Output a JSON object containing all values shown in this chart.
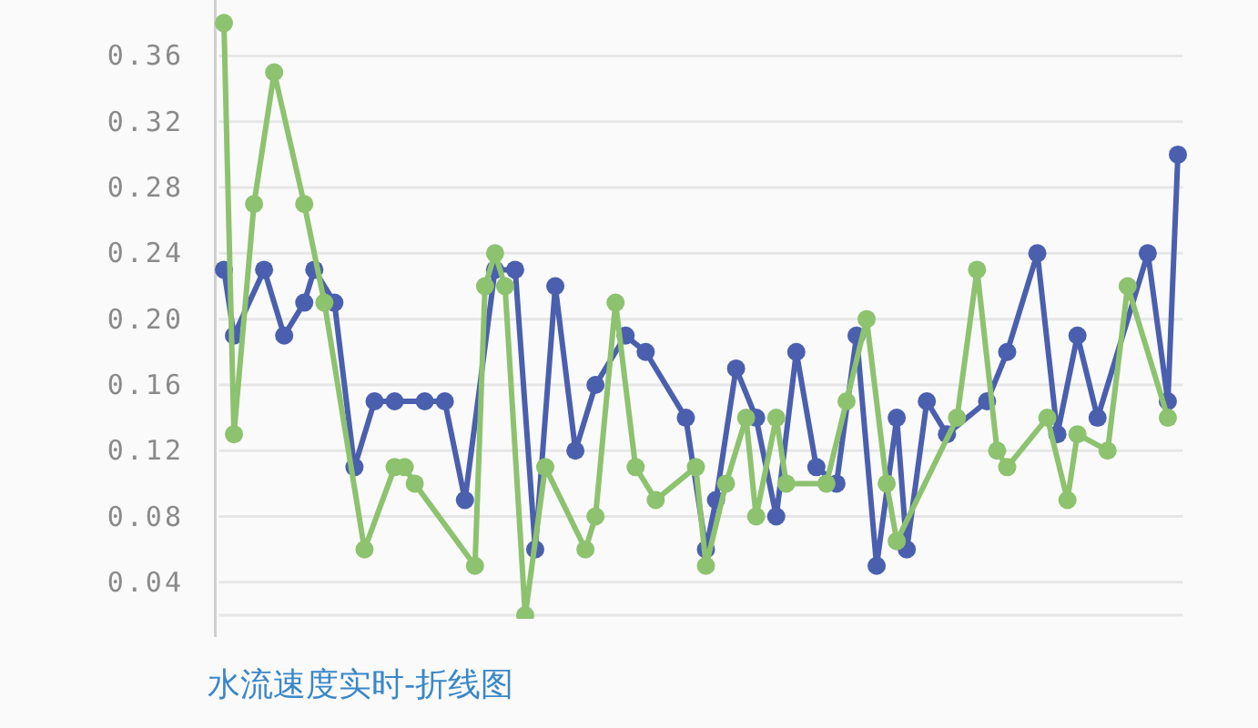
{
  "chart_data": {
    "type": "line",
    "title": "水流速度实时-折线图",
    "categories": [
      null,
      null,
      null,
      null,
      null,
      null,
      null,
      null,
      null,
      null,
      null,
      null,
      null,
      null,
      null,
      null,
      null,
      null,
      null,
      null,
      null,
      null,
      null,
      null,
      null,
      null,
      null,
      null,
      null,
      null,
      null,
      null,
      null,
      null,
      null,
      null,
      null,
      null,
      null,
      null,
      null,
      null,
      null,
      null,
      null,
      null,
      null,
      null,
      null,
      null,
      null,
      null,
      null,
      null,
      null,
      null,
      null,
      null,
      null,
      null,
      null,
      null,
      null,
      null,
      null,
      null,
      null,
      null,
      null,
      null,
      null,
      null,
      null,
      null,
      null,
      null,
      null,
      null,
      null,
      null,
      null,
      null,
      null,
      null,
      null,
      null,
      null,
      null,
      null,
      null,
      null,
      null,
      null,
      null,
      null,
      null
    ],
    "series": [
      {
        "color": "#4a5fae",
        "values": [
          0.23,
          0.19,
          null,
          null,
          0.23,
          null,
          0.19,
          null,
          0.21,
          0.23,
          null,
          0.21,
          null,
          0.11,
          null,
          0.15,
          null,
          0.15,
          null,
          null,
          0.15,
          null,
          0.15,
          null,
          0.09,
          null,
          null,
          0.23,
          null,
          0.23,
          null,
          0.06,
          null,
          0.22,
          null,
          0.12,
          null,
          0.16,
          null,
          null,
          0.19,
          null,
          0.18,
          null,
          null,
          null,
          0.14,
          null,
          0.06,
          0.09,
          null,
          0.17,
          null,
          0.14,
          null,
          0.08,
          null,
          0.18,
          null,
          0.11,
          null,
          0.1,
          null,
          0.19,
          null,
          0.05,
          null,
          0.14,
          0.06,
          null,
          0.15,
          null,
          0.13,
          null,
          null,
          null,
          0.15,
          null,
          0.18,
          null,
          null,
          0.24,
          null,
          0.13,
          null,
          0.19,
          null,
          0.14,
          null,
          null,
          null,
          null,
          0.24,
          null,
          0.15,
          0.3
        ]
      },
      {
        "color": "#8dc26f",
        "values": [
          0.38,
          0.13,
          null,
          0.27,
          null,
          0.35,
          null,
          null,
          0.27,
          null,
          0.21,
          null,
          null,
          null,
          0.06,
          null,
          null,
          0.11,
          0.11,
          0.1,
          null,
          null,
          null,
          null,
          null,
          0.05,
          0.22,
          0.24,
          0.22,
          null,
          0.02,
          null,
          0.11,
          null,
          null,
          null,
          0.06,
          0.08,
          null,
          0.21,
          null,
          0.11,
          null,
          0.09,
          null,
          null,
          null,
          0.11,
          0.05,
          null,
          0.1,
          null,
          0.14,
          0.08,
          null,
          0.14,
          0.1,
          null,
          null,
          null,
          0.1,
          null,
          0.15,
          null,
          0.2,
          null,
          0.1,
          0.065,
          null,
          null,
          null,
          null,
          null,
          0.14,
          null,
          0.23,
          null,
          0.12,
          0.11,
          null,
          null,
          null,
          0.14,
          null,
          0.09,
          0.13,
          null,
          null,
          0.12,
          null,
          0.22,
          null,
          null,
          null,
          0.14,
          null
        ]
      }
    ],
    "ylim": [
      0.02,
      0.394
    ],
    "yticks": [
      0.04,
      0.08,
      0.12,
      0.16,
      {
        "value": 0.2,
        "label": "0.20"
      },
      0.24,
      0.28,
      0.32,
      0.36
    ],
    "grid": "y",
    "tick_labels": "y",
    "marker": "circle",
    "line_style": "solid"
  }
}
